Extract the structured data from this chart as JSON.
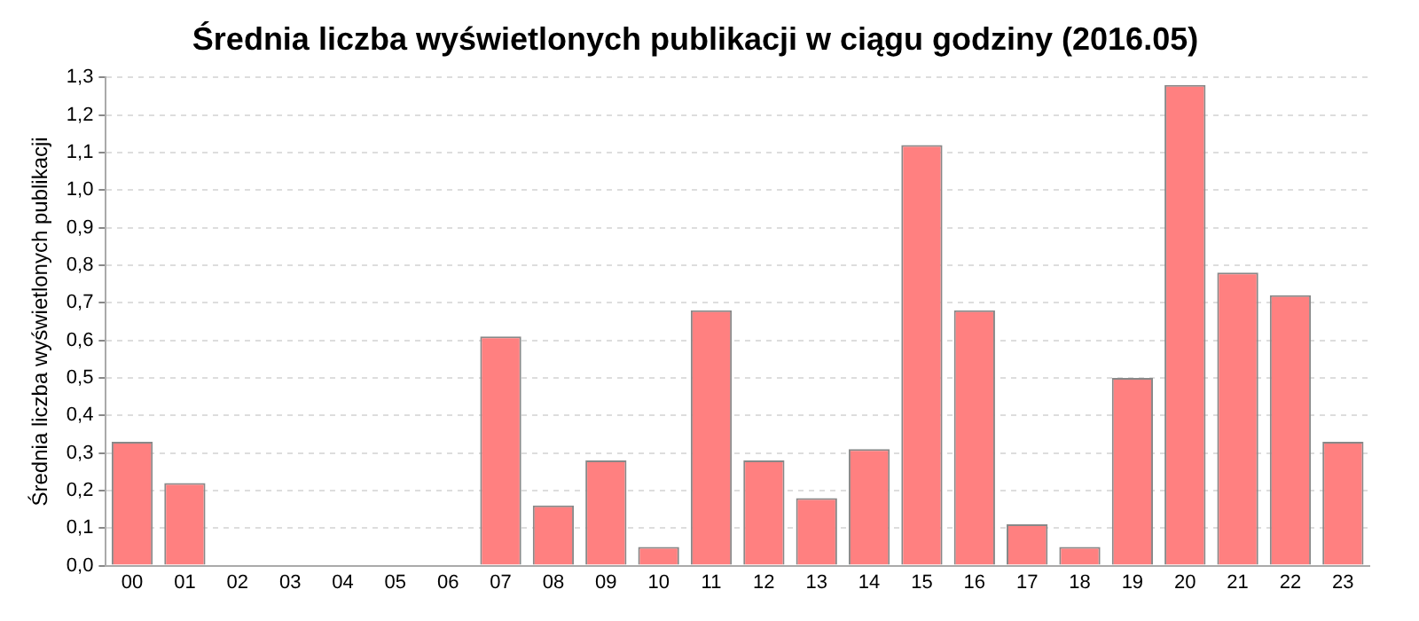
{
  "chart_data": {
    "type": "bar",
    "title": "Średnia liczba wyświetlonych publikacji w ciągu godziny (2016.05)",
    "ylabel": "Średnia liczba wyświetlonych publikacji",
    "categories": [
      "00",
      "01",
      "02",
      "03",
      "04",
      "05",
      "06",
      "07",
      "08",
      "09",
      "10",
      "11",
      "12",
      "13",
      "14",
      "15",
      "16",
      "17",
      "18",
      "19",
      "20",
      "21",
      "22",
      "23"
    ],
    "values": [
      0.33,
      0.22,
      0,
      0,
      0,
      0,
      0,
      0.61,
      0.16,
      0.28,
      0.05,
      0.68,
      0.28,
      0.18,
      0.31,
      1.12,
      0.68,
      0.11,
      0.05,
      0.5,
      1.28,
      0.78,
      0.72,
      0.33
    ],
    "color": "#ff8080",
    "ylim": [
      0,
      1.3
    ],
    "yticks": [
      {
        "value": 0,
        "label": "0,0"
      },
      {
        "value": 0.1,
        "label": "0,1"
      },
      {
        "value": 0.2,
        "label": "0,2"
      },
      {
        "value": 0.3,
        "label": "0,3"
      },
      {
        "value": 0.4,
        "label": "0,4"
      },
      {
        "value": 0.5,
        "label": "0,5"
      },
      {
        "value": 0.6,
        "label": "0,6"
      },
      {
        "value": 0.7,
        "label": "0,7"
      },
      {
        "value": 0.8,
        "label": "0,8"
      },
      {
        "value": 0.9,
        "label": "0,9"
      },
      {
        "value": 1,
        "label": "1,0"
      },
      {
        "value": 1.1,
        "label": "1,1"
      },
      {
        "value": 1.2,
        "label": "1,2"
      },
      {
        "value": 1.3,
        "label": "1,3"
      }
    ],
    "grid": "y",
    "legend": false
  }
}
